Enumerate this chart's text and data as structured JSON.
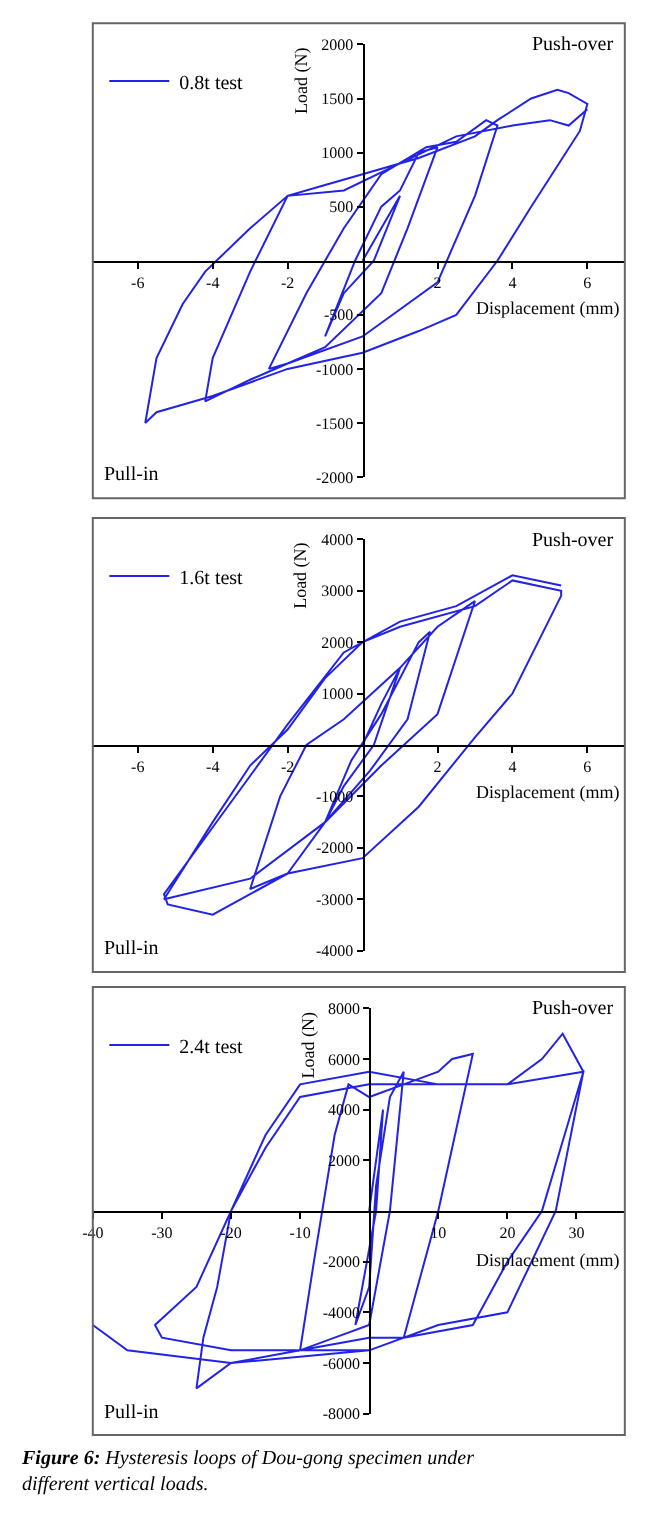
{
  "chart_data": [
    {
      "type": "line",
      "xlabel": "Displacement (mm)",
      "ylabel": "Load (N)",
      "legend": "top left",
      "marker": "none",
      "line_style": "solid",
      "xlim": [
        -7.2,
        7
      ],
      "xticks": [
        -6,
        -4,
        -2,
        2,
        4,
        6
      ],
      "ylim": [
        -2000,
        2000
      ],
      "yticks": [
        -2000,
        -1500,
        -1000,
        -500,
        500,
        1000,
        1500,
        2000
      ],
      "annotations": [
        "Push-over",
        "Pull-in"
      ],
      "series": [
        {
          "name": "0.8t test",
          "color": "#2323e6",
          "x": [
            0,
            1,
            0.3,
            -0.5,
            -1,
            -0.2,
            0.5,
            1,
            1.5,
            2,
            1.2,
            0.5,
            -1,
            -2,
            -2.5,
            -1.5,
            -0.5,
            0.5,
            1.7,
            2.5,
            3.3,
            3.6,
            3,
            2,
            0,
            -2,
            -3,
            -4.2,
            -4,
            -3,
            -2,
            -1,
            0,
            1.5,
            3,
            3.6,
            4.5,
            5.2,
            5.5,
            6,
            5.8,
            4.5,
            3.6,
            2.5,
            1.5,
            0,
            -2,
            -4,
            -5.5,
            -5.8,
            -5.5,
            -4.8,
            -4.2,
            -3,
            -2,
            -0.5,
            1,
            2.5,
            4,
            5,
            5.5,
            6
          ],
          "values": [
            0,
            600,
            0,
            -300,
            -700,
            0,
            500,
            650,
            1000,
            1050,
            300,
            -300,
            -800,
            -950,
            -1000,
            -300,
            300,
            800,
            1050,
            1100,
            1300,
            1250,
            600,
            -200,
            -700,
            -950,
            -1100,
            -1300,
            -900,
            -100,
            600,
            700,
            800,
            950,
            1150,
            1300,
            1500,
            1580,
            1550,
            1450,
            1200,
            500,
            0,
            -500,
            -650,
            -850,
            -1000,
            -1250,
            -1400,
            -1500,
            -900,
            -400,
            -100,
            300,
            600,
            650,
            900,
            1150,
            1250,
            1300,
            1250,
            1400
          ]
        }
      ]
    },
    {
      "type": "line",
      "xlabel": "Displacement (mm)",
      "ylabel": "Load (N)",
      "legend": "top left",
      "marker": "none",
      "line_style": "solid",
      "xlim": [
        -7.2,
        7
      ],
      "xticks": [
        -6,
        -4,
        -2,
        2,
        4,
        6
      ],
      "ylim": [
        -4000,
        4000
      ],
      "yticks": [
        -4000,
        -3000,
        -2000,
        -1000,
        1000,
        2000,
        3000,
        4000
      ],
      "annotations": [
        "Push-over",
        "Pull-in"
      ],
      "series": [
        {
          "name": "1.6t test",
          "color": "#2323e6",
          "x": [
            0,
            0.5,
            1,
            0.3,
            -0.5,
            -1,
            -0.3,
            0.5,
            1.5,
            1.8,
            1.2,
            0.2,
            -1,
            -2,
            -3,
            -2.2,
            -1.5,
            -0.5,
            1,
            2,
            2.8,
            3,
            2,
            0.5,
            -1,
            -3,
            -5.3,
            -4,
            -3,
            -2,
            -1,
            0,
            1,
            3,
            4,
            5.3,
            5.3,
            4,
            3,
            1.5,
            0,
            -2,
            -4,
            -5.2,
            -5.3,
            -4,
            -2,
            -0.5,
            1,
            2.5,
            4,
            5.3
          ],
          "values": [
            0,
            800,
            1500,
            0,
            -800,
            -1500,
            -300,
            600,
            2000,
            2200,
            500,
            -500,
            -1500,
            -2500,
            -2800,
            -1000,
            0,
            500,
            1500,
            2300,
            2700,
            2800,
            600,
            -400,
            -1500,
            -2600,
            -3000,
            -1500,
            -400,
            300,
            1300,
            2000,
            2300,
            2700,
            3200,
            3000,
            2900,
            1000,
            150,
            -1200,
            -2200,
            -2500,
            -3300,
            -3100,
            -2900,
            -1600,
            400,
            1800,
            2400,
            2700,
            3300,
            3100
          ]
        }
      ]
    },
    {
      "type": "line",
      "xlabel": "Displacement (mm)",
      "ylabel": "Load (N)",
      "legend": "top left",
      "marker": "none",
      "line_style": "solid",
      "xlim": [
        -40,
        37
      ],
      "xticks": [
        -40,
        -30,
        -20,
        -10,
        10,
        20,
        30
      ],
      "ylim": [
        -8000,
        8000
      ],
      "yticks": [
        -8000,
        -6000,
        -4000,
        -2000,
        2000,
        4000,
        6000,
        8000
      ],
      "annotations": [
        "Push-over",
        "Pull-in",
        "Figure 6: Hysteresis loops of Dou-gong specimen under different vertical loads."
      ],
      "series": [
        {
          "name": "2.4t test",
          "color": "#2323e6",
          "x": [
            0,
            1,
            2,
            1,
            -1,
            -2,
            0,
            1,
            3,
            5,
            3,
            0,
            -5,
            -10,
            -8,
            -5,
            -3,
            0,
            5,
            10,
            12,
            15,
            10,
            5,
            0,
            -10,
            -20,
            -25,
            -24,
            -22,
            -20,
            -15,
            -10,
            0,
            10,
            20,
            25,
            28,
            31,
            25,
            20,
            15,
            5,
            0,
            -10,
            -20,
            -30,
            -31,
            -25,
            -20,
            -15,
            -10,
            0,
            20,
            31,
            27,
            20,
            10,
            0,
            -20,
            -35,
            -40
          ],
          "values": [
            0,
            2000,
            4000,
            0,
            -3000,
            -4500,
            -3000,
            1000,
            4500,
            5500,
            0,
            -4500,
            -5000,
            -5500,
            -2000,
            3000,
            5000,
            4500,
            5000,
            5500,
            6000,
            6200,
            0,
            -5000,
            -5000,
            -5500,
            -6000,
            -7000,
            -5000,
            -3000,
            0,
            3000,
            5000,
            5500,
            5000,
            5000,
            6000,
            7000,
            5500,
            0,
            -2000,
            -4500,
            -5000,
            -5500,
            -5500,
            -5500,
            -5000,
            -4500,
            -3000,
            0,
            2500,
            4500,
            5000,
            5000,
            5500,
            0,
            -4000,
            -4500,
            -5500,
            -6000,
            -5500,
            -4500
          ]
        }
      ]
    }
  ]
}
